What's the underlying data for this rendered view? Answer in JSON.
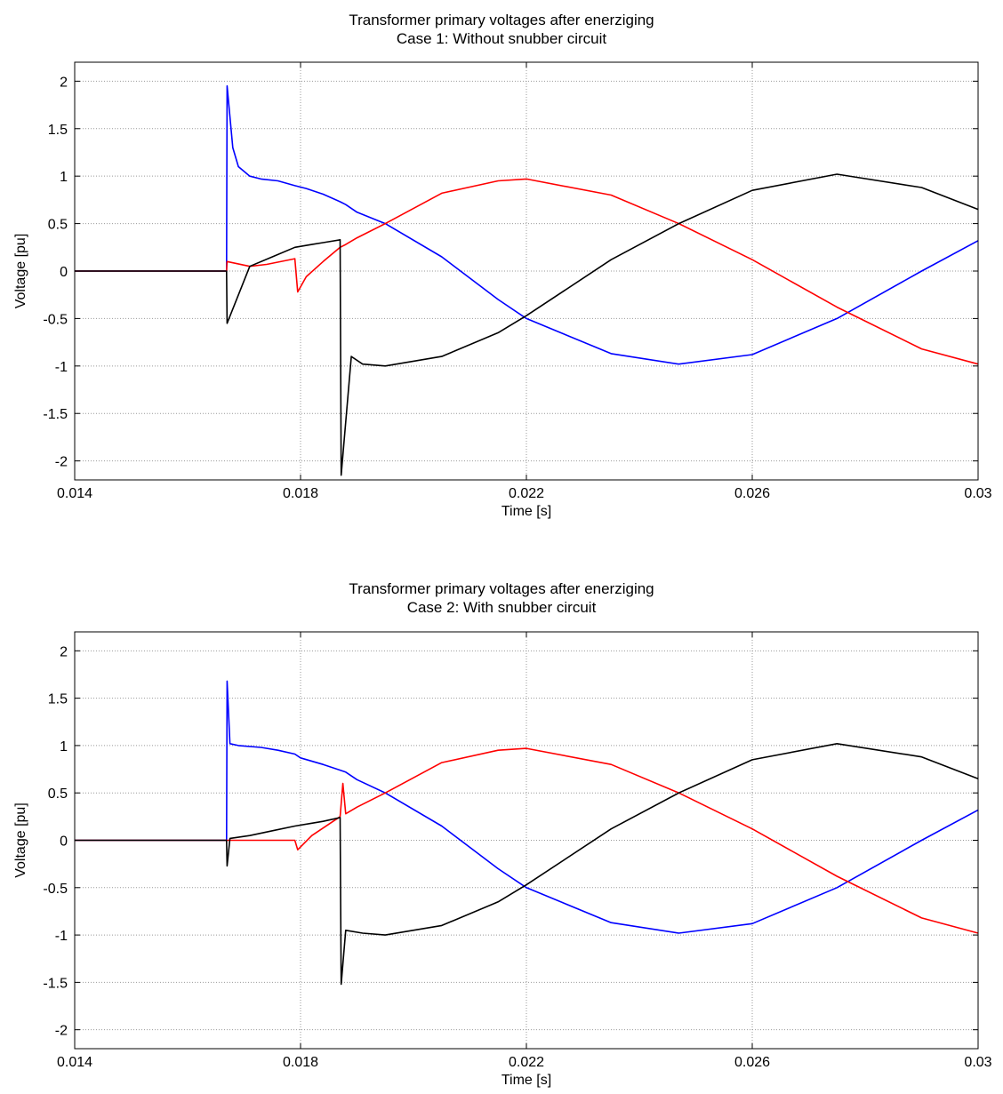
{
  "chart_data": [
    {
      "type": "line",
      "title": "Transformer primary voltages after enerziging",
      "subtitle": "Case 1: Without snubber circuit",
      "xlabel": "Time [s]",
      "ylabel": "Voltage [pu]",
      "xlim": [
        0.014,
        0.03
      ],
      "ylim": [
        -2.2,
        2.2
      ],
      "xticks": [
        "0.014",
        "0.018",
        "0.022",
        "0.026",
        "0.03"
      ],
      "yticks": [
        "2",
        "1.5",
        "1",
        "0.5",
        "0",
        "-0.5",
        "-1",
        "-1.5",
        "-2"
      ],
      "grid": true,
      "legend": "none",
      "series": [
        {
          "color": "#0000ff",
          "x": [
            0.014,
            0.01669,
            0.0167,
            0.0168,
            0.0169,
            0.0171,
            0.0173,
            0.0176,
            0.0179,
            0.0181,
            0.0184,
            0.0187,
            0.0188,
            0.019,
            0.0195,
            0.0205,
            0.0215,
            0.022,
            0.0235,
            0.0247,
            0.026,
            0.0275,
            0.029,
            0.03
          ],
          "y": [
            0,
            0,
            1.95,
            1.3,
            1.1,
            1.0,
            0.97,
            0.95,
            0.9,
            0.87,
            0.81,
            0.73,
            0.7,
            0.62,
            0.5,
            0.15,
            -0.3,
            -0.5,
            -0.87,
            -0.98,
            -0.88,
            -0.5,
            0.0,
            0.32
          ]
        },
        {
          "color": "#ff0000",
          "x": [
            0.014,
            0.01669,
            0.0167,
            0.0171,
            0.0174,
            0.0179,
            0.01795,
            0.0181,
            0.0184,
            0.0187,
            0.0188,
            0.019,
            0.0195,
            0.0205,
            0.0215,
            0.022,
            0.0235,
            0.0247,
            0.026,
            0.0275,
            0.029,
            0.03
          ],
          "y": [
            0,
            0,
            0.1,
            0.05,
            0.07,
            0.13,
            -0.22,
            -0.06,
            0.1,
            0.25,
            0.28,
            0.35,
            0.5,
            0.82,
            0.95,
            0.97,
            0.8,
            0.5,
            0.12,
            -0.38,
            -0.82,
            -0.98
          ]
        },
        {
          "color": "#000000",
          "x": [
            0.014,
            0.01669,
            0.0167,
            0.0171,
            0.0175,
            0.0179,
            0.0182,
            0.0184,
            0.0187,
            0.01872,
            0.0189,
            0.0191,
            0.0195,
            0.0205,
            0.0215,
            0.022,
            0.0235,
            0.0247,
            0.026,
            0.0275,
            0.029,
            0.03
          ],
          "y": [
            0,
            0,
            -0.55,
            0.05,
            0.15,
            0.25,
            0.28,
            0.3,
            0.33,
            -2.15,
            -0.9,
            -0.98,
            -1.0,
            -0.9,
            -0.65,
            -0.47,
            0.12,
            0.5,
            0.85,
            1.02,
            0.88,
            0.65
          ]
        }
      ]
    },
    {
      "type": "line",
      "title": "Transformer primary voltages after enerziging",
      "subtitle": "Case 2: With snubber circuit",
      "xlabel": "Time [s]",
      "ylabel": "Voltage [pu]",
      "xlim": [
        0.014,
        0.03
      ],
      "ylim": [
        -2.2,
        2.2
      ],
      "xticks": [
        "0.014",
        "0.018",
        "0.022",
        "0.026",
        "0.03"
      ],
      "yticks": [
        "2",
        "1.5",
        "1",
        "0.5",
        "0",
        "-0.5",
        "-1",
        "-1.5",
        "-2"
      ],
      "grid": true,
      "legend": "none",
      "series": [
        {
          "color": "#0000ff",
          "x": [
            0.014,
            0.01669,
            0.0167,
            0.01675,
            0.0169,
            0.0173,
            0.0176,
            0.0179,
            0.018,
            0.0184,
            0.0187,
            0.0188,
            0.019,
            0.0195,
            0.0205,
            0.0215,
            0.022,
            0.0235,
            0.0247,
            0.026,
            0.0275,
            0.029,
            0.03
          ],
          "y": [
            0,
            0,
            1.68,
            1.02,
            1.0,
            0.98,
            0.95,
            0.91,
            0.87,
            0.8,
            0.74,
            0.72,
            0.64,
            0.5,
            0.15,
            -0.3,
            -0.5,
            -0.87,
            -0.98,
            -0.88,
            -0.5,
            0.0,
            0.32
          ]
        },
        {
          "color": "#ff0000",
          "x": [
            0.014,
            0.0179,
            0.01795,
            0.0182,
            0.0187,
            0.01875,
            0.0188,
            0.019,
            0.0195,
            0.0205,
            0.0215,
            0.022,
            0.0235,
            0.0247,
            0.026,
            0.0275,
            0.029,
            0.03
          ],
          "y": [
            0,
            0.0,
            -0.1,
            0.05,
            0.25,
            0.6,
            0.28,
            0.35,
            0.5,
            0.82,
            0.95,
            0.97,
            0.8,
            0.5,
            0.12,
            -0.38,
            -0.82,
            -0.98
          ]
        },
        {
          "color": "#000000",
          "x": [
            0.014,
            0.01669,
            0.0167,
            0.01675,
            0.0171,
            0.0175,
            0.0179,
            0.0182,
            0.0184,
            0.0187,
            0.01872,
            0.0188,
            0.0191,
            0.0195,
            0.0205,
            0.0215,
            0.022,
            0.0235,
            0.0247,
            0.026,
            0.0275,
            0.029,
            0.03
          ],
          "y": [
            0,
            0,
            -0.27,
            0.02,
            0.05,
            0.1,
            0.15,
            0.18,
            0.2,
            0.24,
            -1.52,
            -0.95,
            -0.98,
            -1.0,
            -0.9,
            -0.65,
            -0.47,
            0.12,
            0.5,
            0.85,
            1.02,
            0.88,
            0.65
          ]
        }
      ]
    }
  ]
}
